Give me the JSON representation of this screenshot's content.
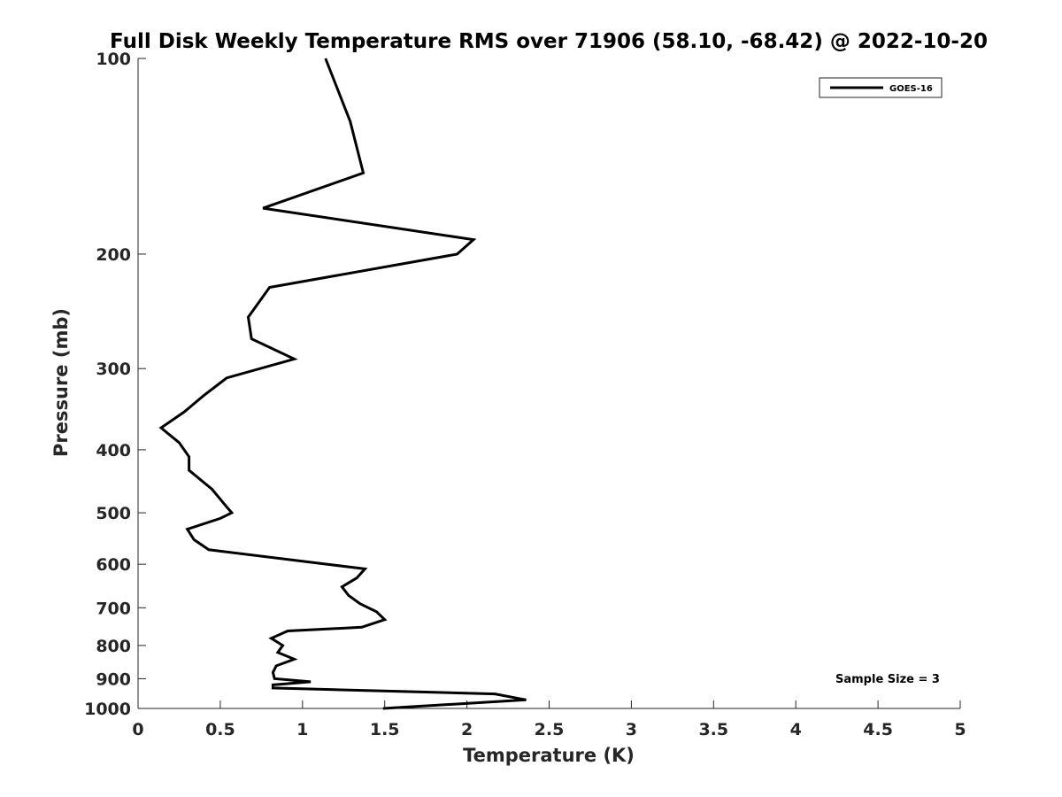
{
  "chart_data": {
    "type": "line",
    "title": "Full Disk Weekly Temperature RMS over 71906 (58.10, -68.42) @ 2022-10-20",
    "xlabel": "Temperature (K)",
    "ylabel": "Pressure (mb)",
    "xlim": [
      0,
      5
    ],
    "ylim": [
      100,
      1000
    ],
    "y_scale": "log",
    "y_reversed": true,
    "x_ticks": [
      "0",
      "0.5",
      "1",
      "1.5",
      "2",
      "2.5",
      "3",
      "3.5",
      "4",
      "4.5",
      "5"
    ],
    "y_ticks": [
      "100",
      "200",
      "300",
      "400",
      "500",
      "600",
      "700",
      "800",
      "900",
      "1000"
    ],
    "grid": false,
    "legend_position": "top-right",
    "annotation": "Sample Size = 3",
    "series": [
      {
        "name": "GOES-16",
        "color": "#000000",
        "points": [
          [
            1.14,
            100
          ],
          [
            1.29,
            125
          ],
          [
            1.37,
            150
          ],
          [
            0.76,
            170
          ],
          [
            2.04,
            190
          ],
          [
            1.94,
            200
          ],
          [
            0.8,
            225
          ],
          [
            0.67,
            250
          ],
          [
            0.69,
            270
          ],
          [
            0.95,
            290
          ],
          [
            0.54,
            310
          ],
          [
            0.4,
            330
          ],
          [
            0.28,
            350
          ],
          [
            0.14,
            370
          ],
          [
            0.25,
            390
          ],
          [
            0.31,
            410
          ],
          [
            0.31,
            430
          ],
          [
            0.45,
            460
          ],
          [
            0.54,
            490
          ],
          [
            0.57,
            500
          ],
          [
            0.5,
            510
          ],
          [
            0.3,
            530
          ],
          [
            0.34,
            550
          ],
          [
            0.43,
            570
          ],
          [
            1.38,
            610
          ],
          [
            1.33,
            630
          ],
          [
            1.24,
            650
          ],
          [
            1.28,
            670
          ],
          [
            1.35,
            690
          ],
          [
            1.45,
            710
          ],
          [
            1.5,
            730
          ],
          [
            1.36,
            750
          ],
          [
            0.91,
            760
          ],
          [
            0.81,
            780
          ],
          [
            0.88,
            800
          ],
          [
            0.85,
            820
          ],
          [
            0.95,
            840
          ],
          [
            0.84,
            860
          ],
          [
            0.82,
            880
          ],
          [
            0.83,
            900
          ],
          [
            1.05,
            910
          ],
          [
            0.82,
            920
          ],
          [
            0.82,
            930
          ],
          [
            2.17,
            950
          ],
          [
            2.36,
            970
          ],
          [
            1.49,
            1000
          ]
        ]
      }
    ]
  }
}
